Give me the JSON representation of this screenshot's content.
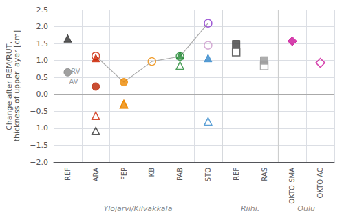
{
  "chart_data": {
    "type": "scatter",
    "ylabel": "Change after REM/RUT,\nthickness of upper layer [cm]",
    "categories": [
      "REF",
      "ARA",
      "FEP",
      "KB",
      "PAB",
      "STO",
      "REF",
      "RAS",
      "OKTO SMA",
      "OKTO AC"
    ],
    "groups": [
      {
        "label": "Ylöjärvi/Kilvakkala",
        "size": 6
      },
      {
        "label": "Riihi.",
        "size": 2
      },
      {
        "label": "Oulu",
        "size": 2
      }
    ],
    "ylim": [
      -2.0,
      2.5
    ],
    "yticks": [
      {
        "value": -2.0,
        "label": "−2.0"
      },
      {
        "value": -1.5,
        "label": "−1.5"
      },
      {
        "value": -1.0,
        "label": "−1.0"
      },
      {
        "value": -0.5,
        "label": "−0.5"
      },
      {
        "value": 0.0,
        "label": "0.0"
      },
      {
        "value": 0.5,
        "label": "0.5"
      },
      {
        "value": 1.0,
        "label": "1.0"
      },
      {
        "value": 1.5,
        "label": "1.5"
      },
      {
        "value": 2.0,
        "label": "2.0"
      },
      {
        "value": 2.5,
        "label": "2.5"
      }
    ],
    "grid": true,
    "hlines": [
      0
    ],
    "annotations": [
      {
        "text": "RV",
        "x": 0.12,
        "y": 0.68
      },
      {
        "text": "AV",
        "x": 0.05,
        "y": 0.37
      }
    ],
    "series": [
      {
        "type": "line",
        "color": "#aaaaaa",
        "values": [
          null,
          1.13,
          0.36,
          0.97,
          1.12,
          2.1,
          null,
          null,
          null,
          null
        ]
      },
      {
        "type": "scatter",
        "color": "#303030",
        "marker": "triangle",
        "values": [
          1.65,
          null,
          null,
          null,
          null,
          null,
          null,
          null,
          null,
          null
        ]
      },
      {
        "type": "scatter",
        "color": "#888888",
        "marker": "circle",
        "values": [
          0.65,
          null,
          null,
          null,
          null,
          null,
          null,
          null,
          null,
          null
        ]
      },
      {
        "type": "scatter",
        "color": "#cc2200",
        "marker": "triangle",
        "values": [
          null,
          1.07,
          null,
          null,
          null,
          null,
          null,
          null,
          null,
          null
        ]
      },
      {
        "type": "scatter",
        "color": "#bb2200",
        "marker": "circle",
        "values": [
          null,
          0.23,
          null,
          null,
          null,
          null,
          null,
          null,
          null,
          null
        ]
      },
      {
        "type": "scatter",
        "color": "#303030",
        "marker": "triangle-open",
        "values": [
          null,
          -1.08,
          null,
          null,
          null,
          null,
          null,
          null,
          null,
          null
        ]
      },
      {
        "type": "scatter",
        "color": "#cc2200",
        "marker": "triangle-open",
        "values": [
          null,
          -0.63,
          null,
          null,
          null,
          null,
          null,
          null,
          null,
          null
        ]
      },
      {
        "type": "scatter",
        "color": "#cc2200",
        "marker": "circle-open",
        "values": [
          null,
          1.13,
          null,
          null,
          null,
          null,
          null,
          null,
          null,
          null
        ]
      },
      {
        "type": "scatter",
        "color": "#ee8800",
        "marker": "circle",
        "values": [
          null,
          null,
          0.36,
          null,
          null,
          null,
          null,
          null,
          null,
          null
        ]
      },
      {
        "type": "scatter",
        "color": "#ee8800",
        "marker": "triangle",
        "values": [
          null,
          null,
          -0.27,
          null,
          null,
          null,
          null,
          null,
          null,
          null
        ]
      },
      {
        "type": "scatter",
        "color": "#ee8800",
        "marker": "triangle-open",
        "values": [
          null,
          null,
          -0.3,
          null,
          null,
          null,
          null,
          null,
          null,
          null
        ]
      },
      {
        "type": "scatter",
        "color": "#ee8800",
        "marker": "circle-open",
        "values": [
          null,
          null,
          null,
          0.97,
          null,
          null,
          null,
          null,
          null,
          null
        ]
      },
      {
        "type": "scatter",
        "color": "#228833",
        "marker": "triangle",
        "values": [
          null,
          null,
          null,
          null,
          1.15,
          null,
          null,
          null,
          null,
          null
        ]
      },
      {
        "type": "scatter",
        "color": "#228833",
        "marker": "circle-open",
        "values": [
          null,
          null,
          null,
          null,
          1.12,
          null,
          null,
          null,
          null,
          null
        ]
      },
      {
        "type": "scatter",
        "color": "#228833",
        "marker": "triangle-open",
        "values": [
          null,
          null,
          null,
          null,
          0.85,
          null,
          null,
          null,
          null,
          null
        ]
      },
      {
        "type": "scatter",
        "color": "#8833cc",
        "marker": "circle-open",
        "values": [
          null,
          null,
          null,
          null,
          null,
          2.1,
          null,
          null,
          null,
          null
        ]
      },
      {
        "type": "scatter",
        "color": "#cc99cc",
        "marker": "circle-open",
        "values": [
          null,
          null,
          null,
          null,
          null,
          1.45,
          null,
          null,
          null,
          null
        ]
      },
      {
        "type": "scatter",
        "color": "#3388cc",
        "marker": "triangle",
        "values": [
          null,
          null,
          null,
          null,
          null,
          1.07,
          null,
          null,
          null,
          null
        ]
      },
      {
        "type": "scatter",
        "color": "#3388cc",
        "marker": "triangle-open",
        "values": [
          null,
          null,
          null,
          null,
          null,
          -0.8,
          null,
          null,
          null,
          null
        ]
      },
      {
        "type": "scatter",
        "color": "#404040",
        "marker": "square",
        "values": [
          null,
          null,
          null,
          null,
          null,
          null,
          1.48,
          null,
          null,
          null
        ]
      },
      {
        "type": "scatter",
        "color": "#404040",
        "marker": "square-open",
        "values": [
          null,
          null,
          null,
          null,
          null,
          null,
          1.25,
          null,
          null,
          null
        ]
      },
      {
        "type": "scatter",
        "color": "#999999",
        "marker": "square",
        "values": [
          null,
          null,
          null,
          null,
          null,
          null,
          null,
          1.0,
          null,
          null
        ]
      },
      {
        "type": "scatter",
        "color": "#999999",
        "marker": "square-open",
        "values": [
          null,
          null,
          null,
          null,
          null,
          null,
          null,
          0.84,
          null,
          null
        ]
      },
      {
        "type": "scatter",
        "color": "#cc1199",
        "marker": "diamond",
        "values": [
          null,
          null,
          null,
          null,
          null,
          null,
          null,
          null,
          1.57,
          null
        ]
      },
      {
        "type": "scatter",
        "color": "#cc1199",
        "marker": "diamond-open",
        "values": [
          null,
          null,
          null,
          null,
          null,
          null,
          null,
          null,
          null,
          0.93
        ]
      }
    ]
  }
}
